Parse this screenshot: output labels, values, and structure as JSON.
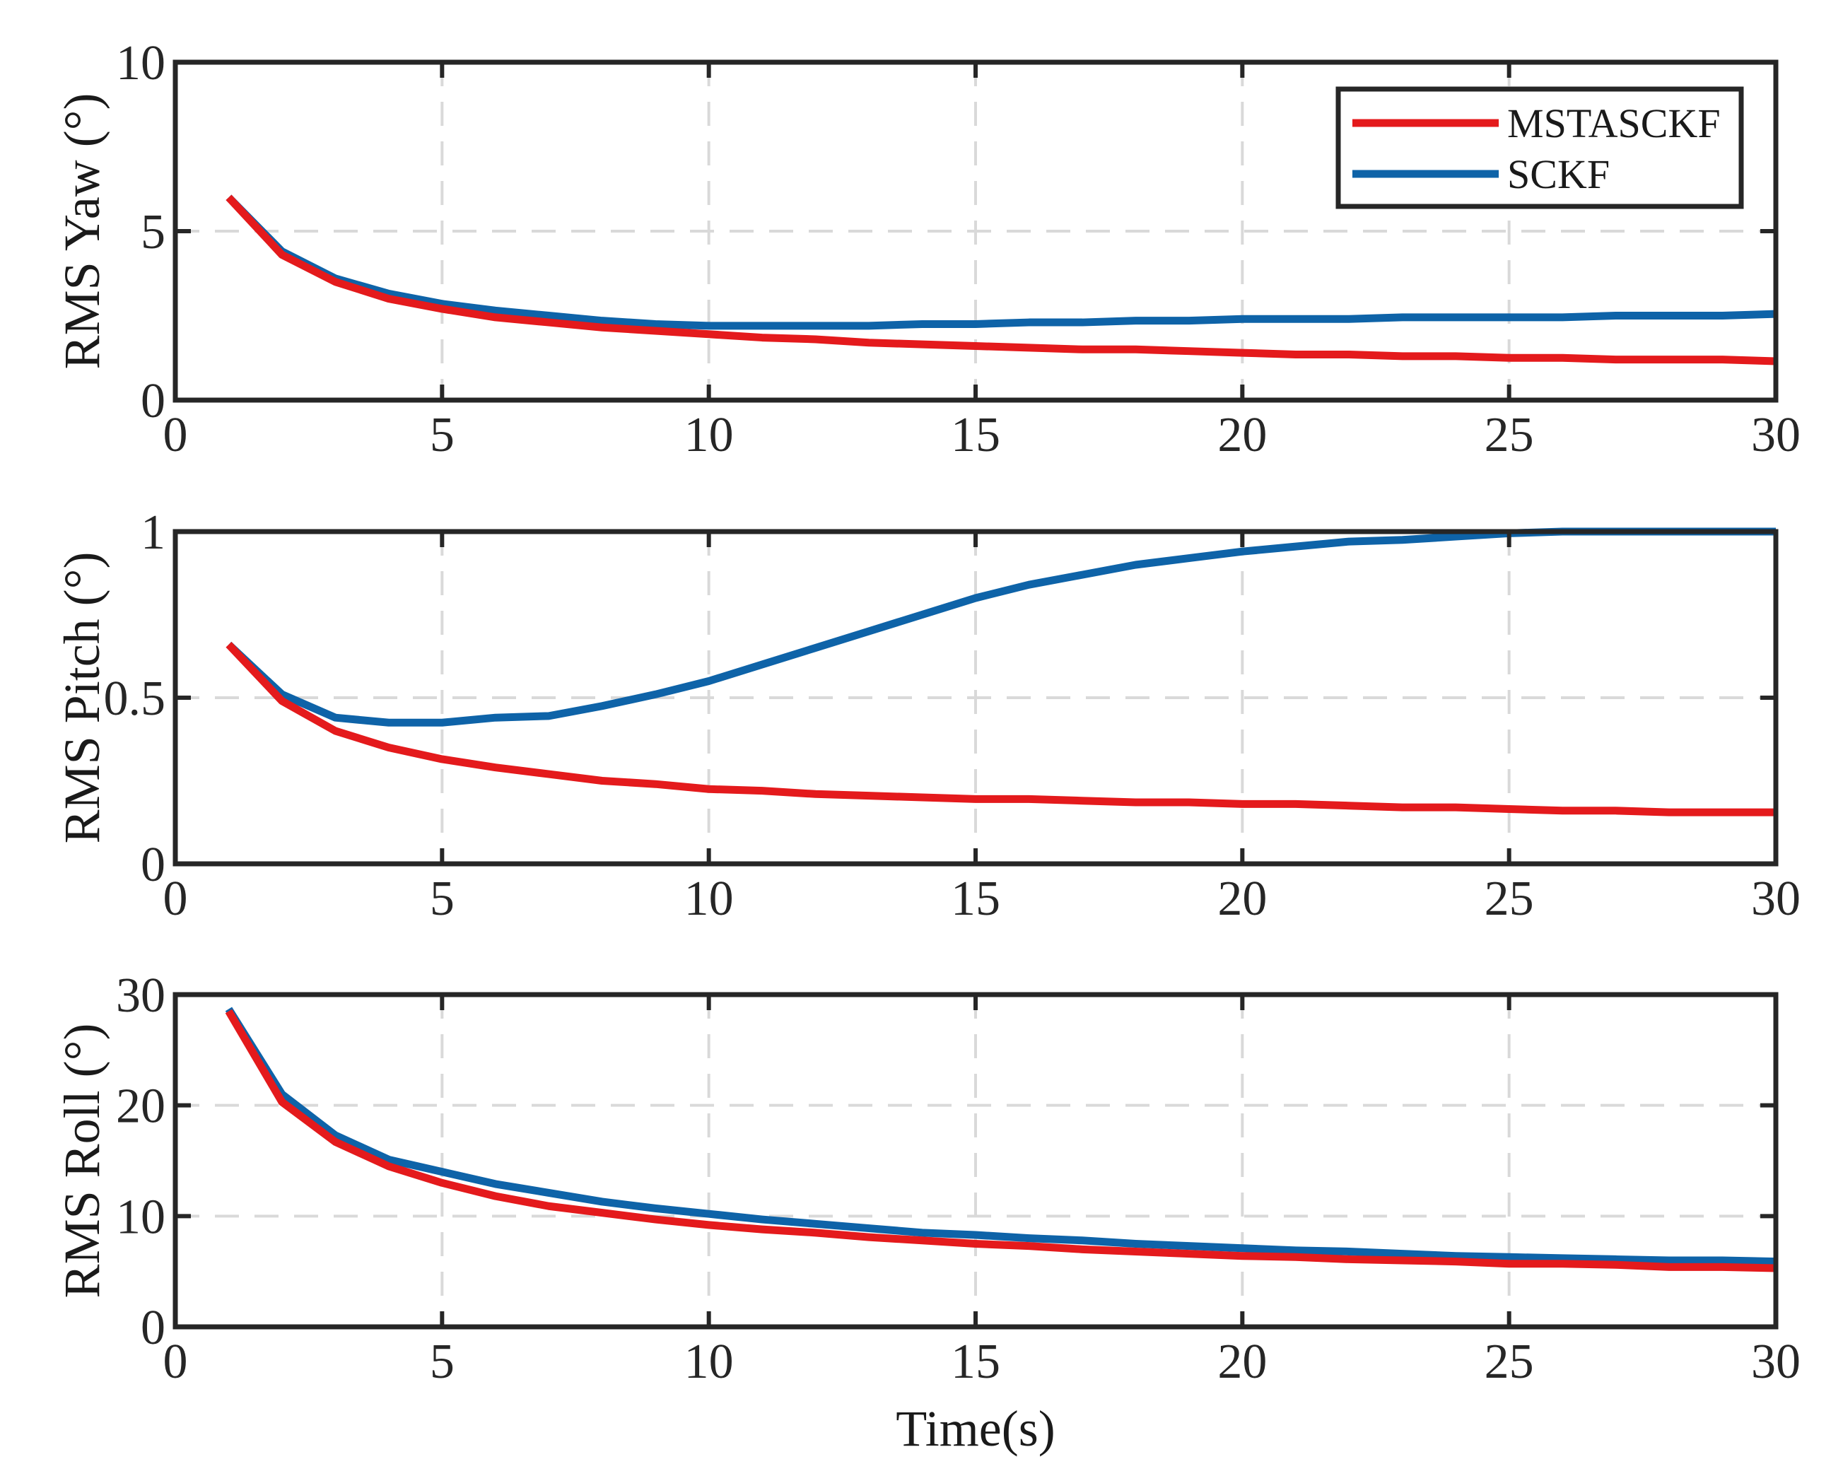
{
  "chart_data": [
    {
      "type": "line",
      "ylabel": "RMS Yaw (°)",
      "xlabel": "",
      "xlim": [
        0,
        30
      ],
      "ylim": [
        0,
        10
      ],
      "xticks": [
        "0",
        "5",
        "10",
        "15",
        "20",
        "25",
        "30"
      ],
      "yticks": [
        "0",
        "5",
        "10"
      ],
      "grid": true,
      "legend": "top-right",
      "x": [
        1,
        2,
        3,
        4,
        5,
        6,
        7,
        8,
        9,
        10,
        11,
        12,
        13,
        14,
        15,
        16,
        17,
        18,
        19,
        20,
        21,
        22,
        23,
        24,
        25,
        26,
        27,
        28,
        29,
        30
      ],
      "series": [
        {
          "name": "MSTASCKF",
          "color": "#e41a1c",
          "values": [
            6.0,
            4.3,
            3.5,
            3.0,
            2.7,
            2.45,
            2.3,
            2.15,
            2.05,
            1.95,
            1.85,
            1.8,
            1.7,
            1.65,
            1.6,
            1.55,
            1.5,
            1.5,
            1.45,
            1.4,
            1.35,
            1.35,
            1.3,
            1.3,
            1.25,
            1.25,
            1.2,
            1.2,
            1.2,
            1.15
          ]
        },
        {
          "name": "SCKF",
          "color": "#0e63a8",
          "values": [
            6.0,
            4.4,
            3.6,
            3.15,
            2.85,
            2.65,
            2.5,
            2.35,
            2.25,
            2.2,
            2.2,
            2.2,
            2.2,
            2.25,
            2.25,
            2.3,
            2.3,
            2.35,
            2.35,
            2.4,
            2.4,
            2.4,
            2.45,
            2.45,
            2.45,
            2.45,
            2.5,
            2.5,
            2.5,
            2.55
          ]
        }
      ]
    },
    {
      "type": "line",
      "ylabel": "RMS Pitch (°)",
      "xlabel": "",
      "xlim": [
        0,
        30
      ],
      "ylim": [
        0,
        1
      ],
      "xticks": [
        "0",
        "5",
        "10",
        "15",
        "20",
        "25",
        "30"
      ],
      "yticks": [
        "0",
        "0.5",
        "1"
      ],
      "grid": true,
      "x": [
        1,
        2,
        3,
        4,
        5,
        6,
        7,
        8,
        9,
        10,
        11,
        12,
        13,
        14,
        15,
        16,
        17,
        18,
        19,
        20,
        21,
        22,
        23,
        24,
        25,
        26,
        27,
        28,
        29,
        30
      ],
      "series": [
        {
          "name": "MSTASCKF",
          "color": "#e41a1c",
          "values": [
            0.66,
            0.49,
            0.4,
            0.35,
            0.315,
            0.29,
            0.27,
            0.25,
            0.24,
            0.225,
            0.22,
            0.21,
            0.205,
            0.2,
            0.195,
            0.195,
            0.19,
            0.185,
            0.185,
            0.18,
            0.18,
            0.175,
            0.17,
            0.17,
            0.165,
            0.16,
            0.16,
            0.155,
            0.155,
            0.155
          ]
        },
        {
          "name": "SCKF",
          "color": "#0e63a8",
          "values": [
            0.66,
            0.51,
            0.44,
            0.425,
            0.425,
            0.44,
            0.445,
            0.475,
            0.51,
            0.55,
            0.6,
            0.65,
            0.7,
            0.75,
            0.8,
            0.84,
            0.87,
            0.9,
            0.92,
            0.94,
            0.955,
            0.97,
            0.975,
            0.985,
            0.995,
            1.0,
            1.0,
            1.0,
            1.0,
            1.0
          ]
        }
      ]
    },
    {
      "type": "line",
      "ylabel": "RMS Roll (°)",
      "xlabel": "Time(s)",
      "xlim": [
        0,
        30
      ],
      "ylim": [
        0,
        30
      ],
      "xticks": [
        "0",
        "5",
        "10",
        "15",
        "20",
        "25",
        "30"
      ],
      "yticks": [
        "0",
        "10",
        "20",
        "30"
      ],
      "grid": true,
      "x": [
        1,
        2,
        3,
        4,
        5,
        6,
        7,
        8,
        9,
        10,
        11,
        12,
        13,
        14,
        15,
        16,
        17,
        18,
        19,
        20,
        21,
        22,
        23,
        24,
        25,
        26,
        27,
        28,
        29,
        30
      ],
      "series": [
        {
          "name": "MSTASCKF",
          "color": "#e41a1c",
          "values": [
            28.5,
            20.3,
            16.7,
            14.5,
            13.0,
            11.8,
            10.9,
            10.3,
            9.7,
            9.2,
            8.8,
            8.5,
            8.1,
            7.8,
            7.5,
            7.3,
            7.0,
            6.8,
            6.6,
            6.4,
            6.3,
            6.1,
            6.0,
            5.9,
            5.7,
            5.7,
            5.6,
            5.4,
            5.4,
            5.3
          ]
        },
        {
          "name": "SCKF",
          "color": "#0e63a8",
          "values": [
            28.7,
            21.0,
            17.3,
            15.1,
            14.0,
            12.9,
            12.1,
            11.3,
            10.7,
            10.2,
            9.7,
            9.3,
            8.9,
            8.5,
            8.3,
            8.0,
            7.8,
            7.5,
            7.3,
            7.1,
            6.9,
            6.8,
            6.6,
            6.4,
            6.3,
            6.2,
            6.1,
            6.0,
            6.0,
            5.9
          ]
        }
      ]
    }
  ]
}
